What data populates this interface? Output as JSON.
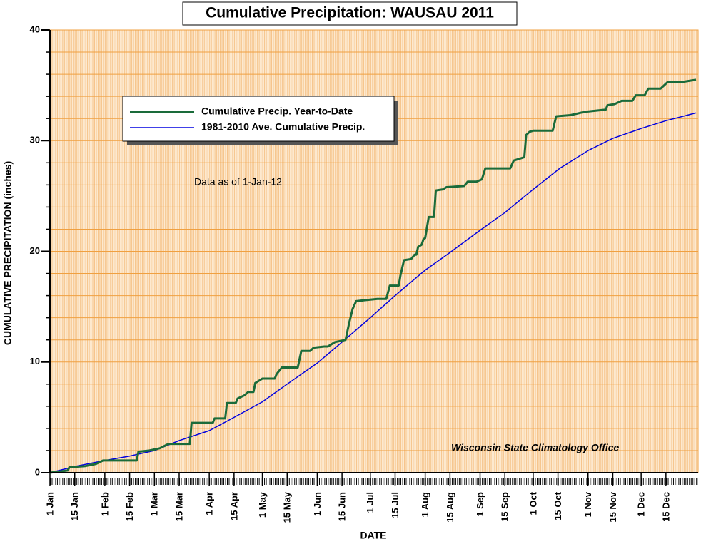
{
  "chart_data": {
    "type": "line",
    "title": "Cumulative Precipitation: WAUSAU 2011",
    "x_label": "DATE",
    "y_label": "CUMULATIVE PRECIPITATION (inches)",
    "annotations": [
      "Data as of 1-Jan-12",
      "Wisconsin State Climatology Office"
    ],
    "xlim": [
      0,
      365
    ],
    "ylim": [
      0,
      40
    ],
    "yticks": [
      0,
      10,
      20,
      30,
      40
    ],
    "yminorticks": [
      2,
      4,
      6,
      8,
      12,
      14,
      16,
      18,
      22,
      24,
      26,
      28,
      32,
      34,
      36,
      38
    ],
    "xticks": [
      {
        "value": 0,
        "label": "1 Jan"
      },
      {
        "value": 14,
        "label": "15 Jan"
      },
      {
        "value": 31,
        "label": "1 Feb"
      },
      {
        "value": 45,
        "label": "15 Feb"
      },
      {
        "value": 59,
        "label": "1 Mar"
      },
      {
        "value": 73,
        "label": "15 Mar"
      },
      {
        "value": 90,
        "label": "1 Apr"
      },
      {
        "value": 104,
        "label": "15 Apr"
      },
      {
        "value": 120,
        "label": "1 May"
      },
      {
        "value": 134,
        "label": "15 May"
      },
      {
        "value": 151,
        "label": "1 Jun"
      },
      {
        "value": 165,
        "label": "15 Jun"
      },
      {
        "value": 181,
        "label": "1 Jul"
      },
      {
        "value": 195,
        "label": "15 Jul"
      },
      {
        "value": 212,
        "label": "1 Aug"
      },
      {
        "value": 226,
        "label": "15 Aug"
      },
      {
        "value": 243,
        "label": "1 Sep"
      },
      {
        "value": 257,
        "label": "15 Sep"
      },
      {
        "value": 273,
        "label": "1 Oct"
      },
      {
        "value": 287,
        "label": "15 Oct"
      },
      {
        "value": 304,
        "label": "1 Nov"
      },
      {
        "value": 318,
        "label": "15 Nov"
      },
      {
        "value": 334,
        "label": "1 Dec"
      },
      {
        "value": 348,
        "label": "15 Dec"
      }
    ],
    "grid": true,
    "legend_position": "upper left",
    "series": [
      {
        "name": "Cumulative Precip. Year-to-Date",
        "color": "#1a6b3a",
        "x": [
          0,
          10,
          11,
          20,
          26,
          30,
          42,
          49,
          50,
          56,
          62,
          67,
          77,
          79,
          80,
          91,
          92,
          93,
          99,
          100,
          105,
          106,
          110,
          112,
          115,
          116,
          118,
          120,
          127,
          128,
          131,
          140,
          142,
          147,
          149,
          155,
          157,
          161,
          167,
          169,
          171,
          173,
          179,
          185,
          190,
          192,
          197,
          198,
          200,
          204,
          206,
          207,
          208,
          210,
          211,
          212,
          214,
          217,
          218,
          222,
          224,
          234,
          236,
          241,
          244,
          246,
          260,
          262,
          266,
          268,
          269,
          271,
          273,
          284,
          286,
          294,
          302,
          314,
          315,
          319,
          323,
          329,
          331,
          336,
          338,
          345,
          347,
          349,
          357,
          365
        ],
        "values": [
          0,
          0.2,
          0.5,
          0.6,
          0.8,
          1.1,
          1.1,
          1.1,
          1.9,
          2.0,
          2.2,
          2.6,
          2.6,
          2.6,
          4.5,
          4.5,
          4.5,
          4.9,
          4.9,
          6.3,
          6.3,
          6.7,
          7.0,
          7.3,
          7.3,
          8.1,
          8.3,
          8.5,
          8.5,
          8.9,
          9.5,
          9.5,
          11.0,
          11.0,
          11.3,
          11.4,
          11.4,
          11.8,
          12.0,
          13.5,
          14.8,
          15.5,
          15.6,
          15.7,
          15.7,
          16.9,
          16.9,
          17.8,
          19.2,
          19.3,
          19.7,
          19.7,
          20.4,
          20.6,
          21.1,
          21.2,
          23.1,
          23.1,
          25.5,
          25.6,
          25.8,
          25.9,
          26.3,
          26.3,
          26.5,
          27.5,
          27.5,
          28.2,
          28.4,
          28.5,
          30.5,
          30.8,
          30.9,
          30.9,
          32.2,
          32.3,
          32.6,
          32.8,
          33.2,
          33.3,
          33.6,
          33.6,
          34.1,
          34.1,
          34.7,
          34.7,
          35.0,
          35.3,
          35.3,
          35.5
        ]
      },
      {
        "name": "1981-2010 Ave. Cumulative Precip.",
        "color": "#0000e0",
        "x": [
          0,
          15,
          31,
          45,
          59,
          73,
          90,
          104,
          120,
          134,
          151,
          165,
          181,
          195,
          212,
          226,
          243,
          257,
          273,
          288,
          304,
          318,
          334,
          348,
          365
        ],
        "values": [
          0,
          0.6,
          1.1,
          1.5,
          2.0,
          2.9,
          3.8,
          5.0,
          6.4,
          8.0,
          9.9,
          11.8,
          14.0,
          16.0,
          18.3,
          19.9,
          21.9,
          23.5,
          25.6,
          27.5,
          29.1,
          30.2,
          31.1,
          31.8,
          32.5
        ]
      }
    ]
  }
}
